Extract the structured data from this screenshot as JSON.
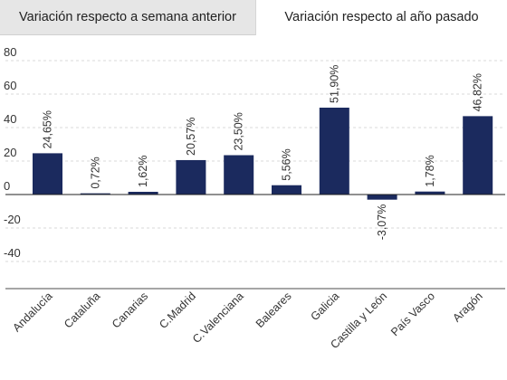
{
  "tabs": [
    {
      "label": "Variación respecto a semana anterior",
      "active": false
    },
    {
      "label": "Variación respecto al año pasado",
      "active": true
    }
  ],
  "colors": {
    "bar": "#1b2a5e",
    "grid": "#d9d9d9",
    "zero": "#222222",
    "text": "#333333"
  },
  "chart_data": {
    "type": "bar",
    "categories": [
      "Andalucía",
      "Cataluña",
      "Canarias",
      "C.Madrid",
      "C.Valenciana",
      "Baleares",
      "Galicia",
      "Castilla y León",
      "País Vasco",
      "Aragón"
    ],
    "values": [
      24.65,
      0.72,
      1.62,
      20.57,
      23.5,
      5.56,
      51.9,
      -3.07,
      1.78,
      46.82
    ],
    "data_labels": [
      "24,65%",
      "0,72%",
      "1,62%",
      "20,57%",
      "23,50%",
      "5,56%",
      "51,90%",
      "-3,07%",
      "1,78%",
      "46,82%"
    ],
    "y_ticks": [
      80,
      60,
      40,
      20,
      0,
      -20,
      -40
    ],
    "ylim": [
      -40,
      80
    ],
    "grid": true,
    "title": "",
    "xlabel": "",
    "ylabel": ""
  }
}
